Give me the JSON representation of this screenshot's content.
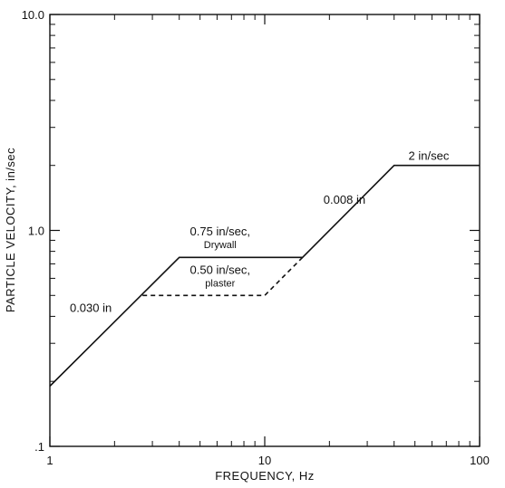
{
  "chart_data": {
    "type": "line",
    "xlabel": "FREQUENCY, Hz",
    "ylabel": "PARTICLE VELOCITY, in/sec",
    "xscale": "log",
    "yscale": "log",
    "xlim": [
      1,
      100
    ],
    "ylim": [
      0.1,
      10
    ],
    "x_tick_labels": [
      {
        "value": 1,
        "label": "1"
      },
      {
        "value": 10,
        "label": "10"
      },
      {
        "value": 100,
        "label": "100"
      }
    ],
    "y_tick_labels": [
      {
        "value": 0.1,
        "label": ".1"
      },
      {
        "value": 1,
        "label": "1.0"
      },
      {
        "value": 10,
        "label": "10.0"
      }
    ],
    "grid": false,
    "series": [
      {
        "style": "solid",
        "x": [
          1,
          4,
          15,
          40,
          100
        ],
        "y": [
          0.19,
          0.75,
          0.75,
          2.0,
          2.0
        ]
      },
      {
        "style": "dashed",
        "x": [
          2.7,
          10,
          15
        ],
        "y": [
          0.5,
          0.5,
          0.75
        ]
      }
    ],
    "annotations": [
      {
        "lines": [
          "0.030 in"
        ],
        "x": 1.55,
        "y": 0.42,
        "size": "normal"
      },
      {
        "lines": [
          "0.75 in/sec,",
          "Drywall"
        ],
        "x": 6.2,
        "y": 0.95,
        "size": "mixed"
      },
      {
        "lines": [
          "0.50 in/sec,",
          "plaster"
        ],
        "x": 6.2,
        "y": 0.63,
        "size": "mixed"
      },
      {
        "lines": [
          "0.008 in"
        ],
        "x": 23.5,
        "y": 1.33,
        "size": "normal"
      },
      {
        "lines": [
          "2 in/sec"
        ],
        "x": 58,
        "y": 2.12,
        "size": "normal"
      }
    ]
  }
}
